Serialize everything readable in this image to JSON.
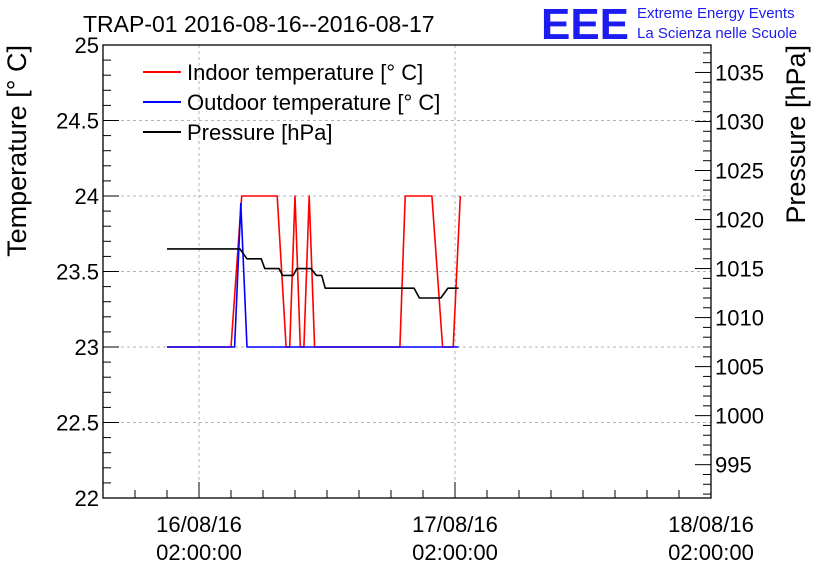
{
  "chart_data": {
    "type": "line",
    "title": "TRAP-01 2016-08-16--2016-08-17",
    "ylabel": "Temperature [° C]",
    "y2label": "Pressure [hPa]",
    "ylim": [
      22,
      25
    ],
    "y2lim": [
      991.6,
      1037.8
    ],
    "xlim": [
      "2016-08-15 17:00:00",
      "2016-08-18 02:00:00"
    ],
    "x_ticks": [
      {
        "x": "2016-08-16 02:00:00",
        "date": "16/08/16",
        "time": "02:00:00"
      },
      {
        "x": "2016-08-17 02:00:00",
        "date": "17/08/16",
        "time": "02:00:00"
      },
      {
        "x": "2016-08-18 02:00:00",
        "date": "18/08/16",
        "time": "02:00:00"
      }
    ],
    "y_ticks": [
      "22",
      "22.5",
      "23",
      "23.5",
      "24",
      "24.5",
      "25"
    ],
    "y2_ticks": [
      "995",
      "1000",
      "1005",
      "1010",
      "1015",
      "1020",
      "1025",
      "1030",
      "1035"
    ],
    "grid": true,
    "legend_position": "top-left",
    "series": [
      {
        "name": "Indoor temperature [° C]",
        "axis": "left",
        "color": "#ff0000",
        "points": [
          [
            "2016-08-15 23:00",
            23.0
          ],
          [
            "2016-08-16 05:00",
            23.0
          ],
          [
            "2016-08-16 06:00",
            24.0
          ],
          [
            "2016-08-16 09:20",
            24.0
          ],
          [
            "2016-08-16 10:10",
            23.0
          ],
          [
            "2016-08-16 10:30",
            23.0
          ],
          [
            "2016-08-16 11:00",
            24.0
          ],
          [
            "2016-08-16 11:30",
            23.0
          ],
          [
            "2016-08-16 11:50",
            23.0
          ],
          [
            "2016-08-16 12:20",
            24.0
          ],
          [
            "2016-08-16 12:50",
            23.0
          ],
          [
            "2016-08-16 20:50",
            23.0
          ],
          [
            "2016-08-16 21:20",
            24.0
          ],
          [
            "2016-08-16 23:50",
            24.0
          ],
          [
            "2016-08-17 00:50",
            23.0
          ],
          [
            "2016-08-17 01:50",
            23.0
          ],
          [
            "2016-08-17 02:30",
            24.0
          ]
        ]
      },
      {
        "name": "Outdoor temperature [° C]",
        "axis": "left",
        "color": "#0000ff",
        "points": [
          [
            "2016-08-15 23:00",
            23.0
          ],
          [
            "2016-08-16 05:20",
            23.0
          ],
          [
            "2016-08-16 05:55",
            23.95
          ],
          [
            "2016-08-16 06:30",
            23.0
          ],
          [
            "2016-08-17 02:20",
            23.0
          ]
        ]
      },
      {
        "name": "Pressure [hPa]",
        "axis": "right",
        "color": "#000000",
        "points": [
          [
            "2016-08-15 23:00",
            1017
          ],
          [
            "2016-08-16 05:50",
            1017
          ],
          [
            "2016-08-16 06:30",
            1016
          ],
          [
            "2016-08-16 07:50",
            1016
          ],
          [
            "2016-08-16 08:10",
            1015
          ],
          [
            "2016-08-16 09:30",
            1015
          ],
          [
            "2016-08-16 09:50",
            1014.3
          ],
          [
            "2016-08-16 10:50",
            1014.3
          ],
          [
            "2016-08-16 11:10",
            1015
          ],
          [
            "2016-08-16 12:30",
            1015
          ],
          [
            "2016-08-16 13:00",
            1014.3
          ],
          [
            "2016-08-16 13:30",
            1014.3
          ],
          [
            "2016-08-16 13:50",
            1013
          ],
          [
            "2016-08-16 21:20",
            1013
          ],
          [
            "2016-08-16 22:10",
            1013
          ],
          [
            "2016-08-16 22:40",
            1012
          ],
          [
            "2016-08-17 00:40",
            1012
          ],
          [
            "2016-08-17 01:20",
            1013
          ],
          [
            "2016-08-17 02:20",
            1013
          ]
        ]
      }
    ]
  },
  "logo": {
    "mark": "EEE",
    "line1": "Extreme Energy Events",
    "line2": "La Scienza nelle Scuole"
  }
}
